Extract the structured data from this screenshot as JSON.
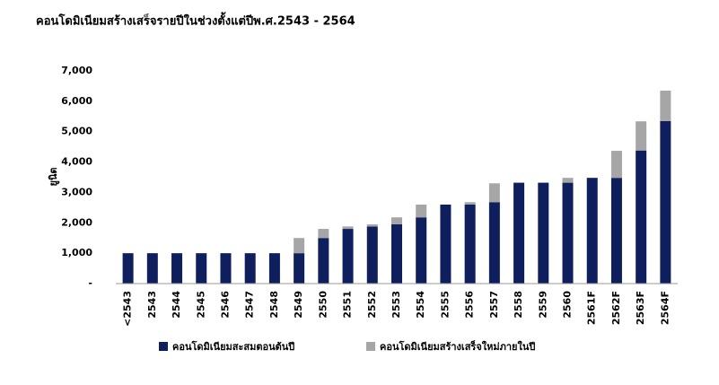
{
  "chart_data": {
    "type": "stacked_bar",
    "title": "คอนโดมิเนียมสร้างเสร็จรายปีในช่วงตั้งแต่ปีพ.ศ.2543 - 2564",
    "y_label": "ยูนิต",
    "categories": [
      "<2543",
      "2543",
      "2544",
      "2545",
      "2546",
      "2547",
      "2548",
      "2549",
      "2550",
      "2551",
      "2552",
      "2553",
      "2554",
      "2555",
      "2556",
      "2557",
      "2558",
      "2559",
      "2560",
      "2561F",
      "2562F",
      "2563F",
      "2564F"
    ],
    "series": [
      {
        "name": "คอนโดมิเนียมสะสมตอนต้นปี",
        "color": "#0f1f5e",
        "values": [
          1000,
          1000,
          1000,
          1000,
          1000,
          1000,
          1000,
          1000,
          1500,
          1800,
          1880,
          1950,
          2180,
          2600,
          2600,
          2680,
          3320,
          3320,
          3320,
          3480,
          3480,
          4380,
          5350
        ]
      },
      {
        "name": "คอนโดมิเนียมสร้างเสร็จใหม่ภายในปี",
        "color": "#a6a6a6",
        "values": [
          0,
          0,
          0,
          0,
          0,
          0,
          0,
          500,
          300,
          80,
          70,
          230,
          420,
          0,
          80,
          620,
          0,
          0,
          160,
          0,
          890,
          960,
          1000
        ]
      }
    ],
    "ylim": [
      0,
      7000
    ],
    "yticks": [
      {
        "value": 0,
        "label": "-"
      },
      {
        "value": 1000,
        "label": "1,000"
      },
      {
        "value": 2000,
        "label": "2,000"
      },
      {
        "value": 3000,
        "label": "3,000"
      },
      {
        "value": 4000,
        "label": "4,000"
      },
      {
        "value": 5000,
        "label": "5,000"
      },
      {
        "value": 6000,
        "label": "6,000"
      },
      {
        "value": 7000,
        "label": "7,000"
      }
    ],
    "grid": false
  }
}
